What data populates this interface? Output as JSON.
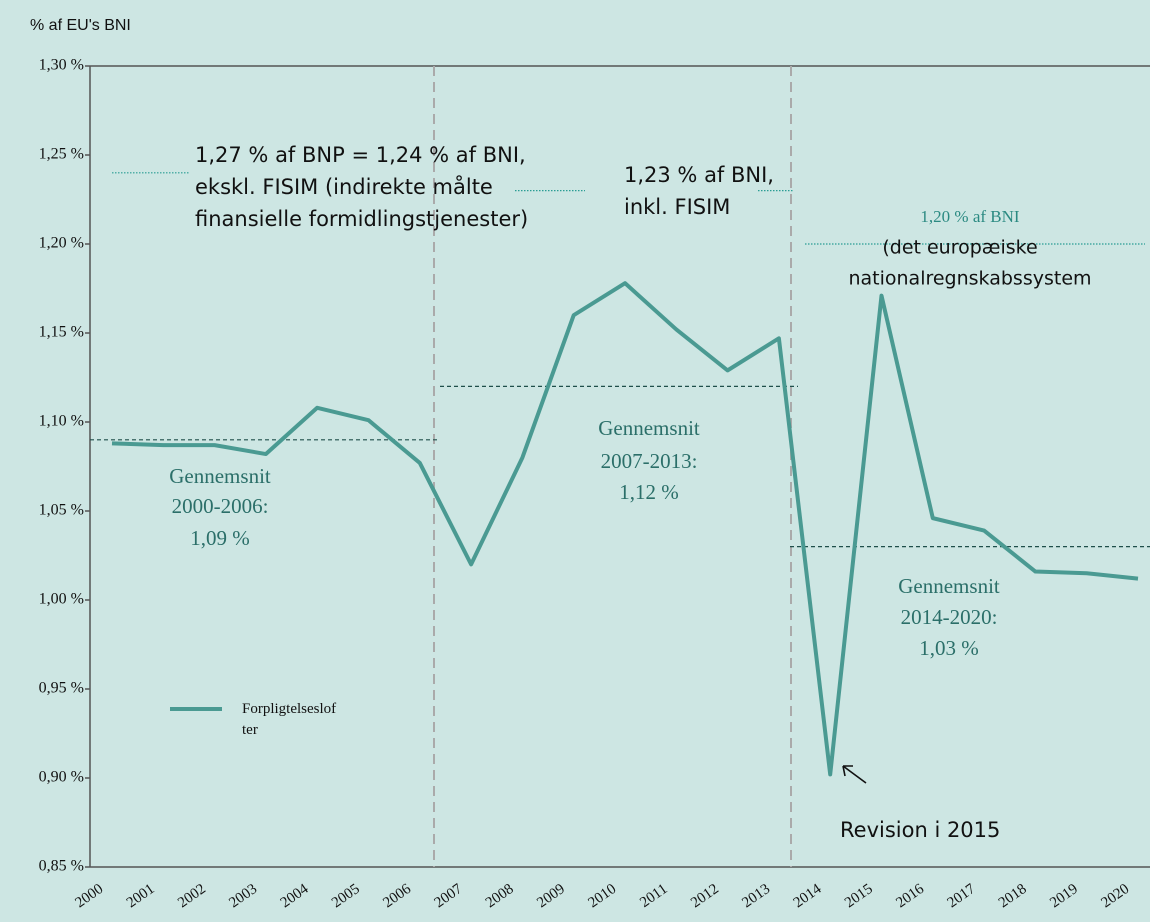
{
  "chart_data": {
    "type": "line",
    "y_axis_label": "% af EU's BNI",
    "categories": [
      "2000",
      "2001",
      "2002",
      "2003",
      "2004",
      "2005",
      "2006",
      "2007",
      "2008",
      "2009",
      "2010",
      "2011",
      "2012",
      "2013",
      "2014",
      "2015",
      "2016",
      "2017",
      "2018",
      "2019",
      "2020"
    ],
    "series": [
      {
        "name": "Forpligtelseslof ter",
        "color": "#4a9a92",
        "values": [
          1.088,
          1.087,
          1.087,
          1.082,
          1.108,
          1.101,
          1.077,
          1.02,
          1.08,
          1.16,
          1.178,
          1.152,
          1.129,
          1.147,
          0.902,
          1.171,
          1.046,
          1.039,
          1.016,
          1.015,
          1.012
        ]
      }
    ],
    "ylim": [
      0.85,
      1.3
    ],
    "yticks": [
      {
        "value": 0.85,
        "label": "0,85 %"
      },
      {
        "value": 0.9,
        "label": "0,90 %"
      },
      {
        "value": 0.95,
        "label": "0,95 %"
      },
      {
        "value": 1.0,
        "label": "1,00 %"
      },
      {
        "value": 1.05,
        "label": "1,05 %"
      },
      {
        "value": 1.1,
        "label": "1,10 %"
      },
      {
        "value": 1.15,
        "label": "1,15 %"
      },
      {
        "value": 1.2,
        "label": "1,20 %"
      },
      {
        "value": 1.25,
        "label": "1,25 %"
      },
      {
        "value": 1.3,
        "label": "1,30 %"
      }
    ],
    "averages": [
      {
        "value": 1.09,
        "label": [
          "Gennemsnit",
          "2000-2006:",
          "1,09 %"
        ]
      },
      {
        "value": 1.12,
        "label": [
          "Gennemsnit",
          "2007-2013:",
          "1,12 %"
        ]
      },
      {
        "value": 1.03,
        "label": [
          "Gennemsnit",
          "2014-2020:",
          "1,03 %"
        ]
      }
    ],
    "ceilings": [
      {
        "value": 1.24,
        "label": [
          "1,27 % af BNP = 1,24 % af BNI,",
          "ekskl. FISIM (indirekte målte",
          "finansielle formidlingstjenester)"
        ]
      },
      {
        "value": 1.23,
        "label": [
          "1,23 % af BNI,",
          "inkl. FISIM"
        ]
      },
      {
        "value": 1.2,
        "label": [
          "1,20 % af BNI",
          "(det europæiske",
          "nationalregnskabssystem"
        ]
      }
    ],
    "annotation": "Revision i 2015"
  }
}
